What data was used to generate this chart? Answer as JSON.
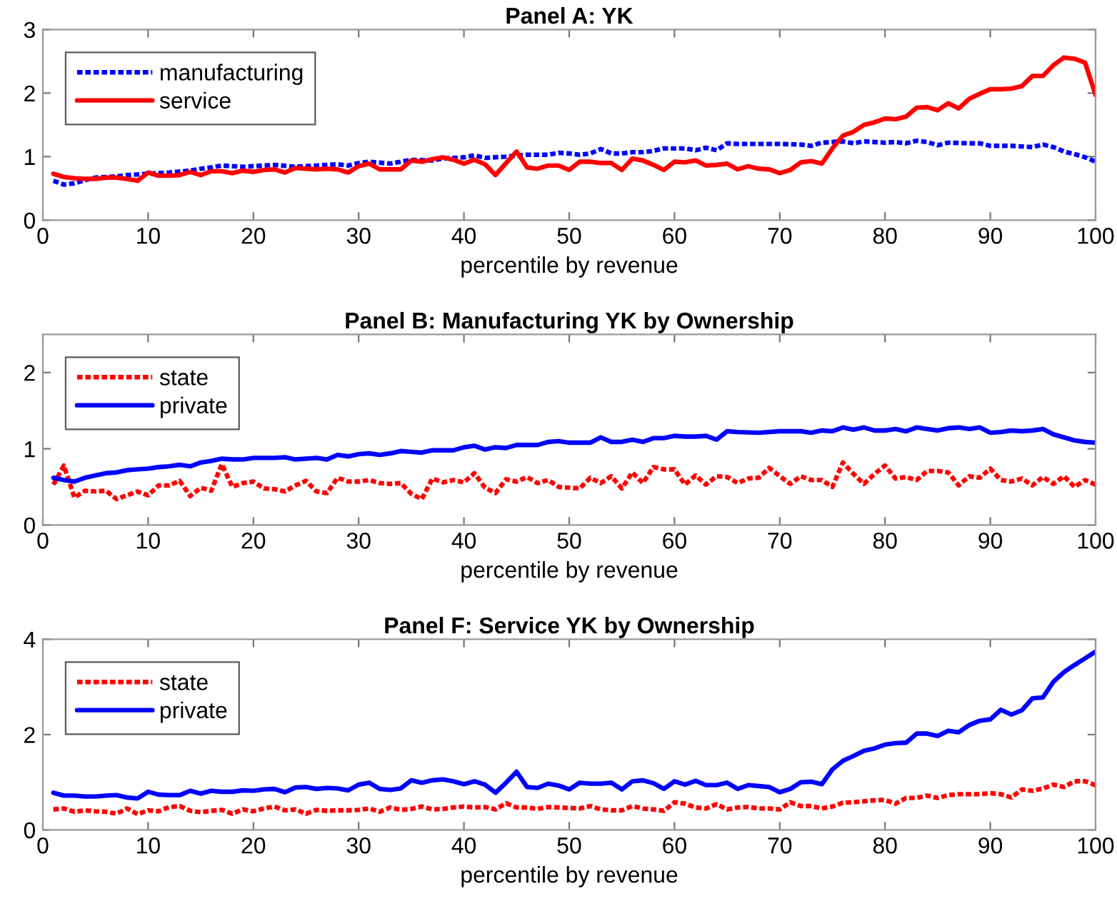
{
  "chart_data": [
    {
      "type": "line",
      "title": "Panel A: YK",
      "xlabel": "percentile by revenue",
      "xlim": [
        0,
        100
      ],
      "xticks": [
        0,
        10,
        20,
        30,
        40,
        50,
        60,
        70,
        80,
        90,
        100
      ],
      "ylim": [
        0,
        3
      ],
      "yticks": [
        0,
        1,
        2,
        3
      ],
      "legend": "top left",
      "x": [
        1,
        2,
        3,
        4,
        5,
        6,
        7,
        8,
        9,
        10,
        11,
        12,
        13,
        14,
        15,
        16,
        17,
        18,
        19,
        20,
        21,
        22,
        23,
        24,
        25,
        26,
        27,
        28,
        29,
        30,
        31,
        32,
        33,
        34,
        35,
        36,
        37,
        38,
        39,
        40,
        41,
        42,
        43,
        44,
        45,
        46,
        47,
        48,
        49,
        50,
        51,
        52,
        53,
        54,
        55,
        56,
        57,
        58,
        59,
        60,
        61,
        62,
        63,
        64,
        65,
        66,
        67,
        68,
        69,
        70,
        71,
        72,
        73,
        74,
        75,
        76,
        77,
        78,
        79,
        80,
        81,
        82,
        83,
        84,
        85,
        86,
        87,
        88,
        89,
        90,
        91,
        92,
        93,
        94,
        95,
        96,
        97,
        98,
        99,
        100
      ],
      "series": [
        {
          "name": "manufacturing",
          "color": "#0000ff",
          "line_style": "dashed",
          "x": [
            1,
            2,
            3,
            4,
            5,
            6,
            7,
            8,
            9,
            10,
            12,
            14,
            15,
            16,
            17,
            18,
            19,
            20,
            22,
            24,
            26,
            28,
            29,
            30,
            31,
            33,
            35,
            37,
            38,
            40,
            41,
            42,
            44,
            46,
            48,
            49,
            50,
            51,
            52,
            53,
            54,
            55,
            56,
            57,
            58,
            59,
            60,
            61,
            62,
            63,
            64,
            65,
            66,
            70,
            72,
            73,
            74,
            76,
            77,
            78,
            80,
            81,
            82,
            83,
            84,
            85,
            86,
            88,
            89,
            90,
            92,
            94,
            95,
            96,
            97,
            98,
            99,
            100
          ],
          "values": [
            0.62,
            0.56,
            0.58,
            0.63,
            0.67,
            0.68,
            0.69,
            0.71,
            0.72,
            0.73,
            0.75,
            0.78,
            0.81,
            0.83,
            0.86,
            0.85,
            0.84,
            0.85,
            0.87,
            0.84,
            0.86,
            0.88,
            0.86,
            0.9,
            0.92,
            0.89,
            0.95,
            0.94,
            0.97,
            0.99,
            1.02,
            0.98,
            1.0,
            1.03,
            1.03,
            1.06,
            1.05,
            1.03,
            1.05,
            1.12,
            1.05,
            1.05,
            1.07,
            1.07,
            1.09,
            1.13,
            1.13,
            1.13,
            1.1,
            1.14,
            1.1,
            1.21,
            1.2,
            1.2,
            1.19,
            1.17,
            1.22,
            1.24,
            1.21,
            1.24,
            1.22,
            1.23,
            1.21,
            1.25,
            1.23,
            1.18,
            1.22,
            1.21,
            1.21,
            1.17,
            1.17,
            1.15,
            1.19,
            1.15,
            1.08,
            1.04,
            0.99,
            0.92
          ]
        },
        {
          "name": "service",
          "color": "#ff0000",
          "line_style": "solid",
          "values": [
            0.73,
            0.68,
            0.66,
            0.65,
            0.65,
            0.67,
            0.67,
            0.65,
            0.62,
            0.75,
            0.7,
            0.7,
            0.71,
            0.76,
            0.71,
            0.77,
            0.77,
            0.74,
            0.78,
            0.76,
            0.79,
            0.8,
            0.75,
            0.82,
            0.81,
            0.8,
            0.81,
            0.8,
            0.75,
            0.85,
            0.89,
            0.8,
            0.8,
            0.8,
            0.94,
            0.92,
            0.96,
            0.99,
            0.95,
            0.89,
            0.95,
            0.88,
            0.71,
            0.9,
            1.08,
            0.83,
            0.81,
            0.86,
            0.86,
            0.79,
            0.92,
            0.92,
            0.9,
            0.9,
            0.79,
            0.97,
            0.94,
            0.87,
            0.79,
            0.92,
            0.91,
            0.94,
            0.86,
            0.87,
            0.89,
            0.8,
            0.85,
            0.81,
            0.8,
            0.74,
            0.79,
            0.91,
            0.93,
            0.89,
            1.13,
            1.33,
            1.39,
            1.5,
            1.54,
            1.6,
            1.59,
            1.63,
            1.77,
            1.78,
            1.73,
            1.84,
            1.76,
            1.91,
            1.99,
            2.06,
            2.06,
            2.07,
            2.11,
            2.27,
            2.27,
            2.44,
            2.56,
            2.54,
            2.48,
            1.97
          ]
        }
      ]
    },
    {
      "type": "line",
      "title": "Panel B: Manufacturing YK by Ownership",
      "xlabel": "percentile by revenue",
      "xlim": [
        0,
        100
      ],
      "xticks": [
        0,
        10,
        20,
        30,
        40,
        50,
        60,
        70,
        80,
        90,
        100
      ],
      "ylim": [
        0,
        2.5
      ],
      "yticks": [
        0,
        1,
        2
      ],
      "legend": "top left",
      "x": [
        1,
        2,
        3,
        4,
        5,
        6,
        7,
        8,
        9,
        10,
        11,
        12,
        13,
        14,
        15,
        16,
        17,
        18,
        19,
        20,
        21,
        22,
        23,
        24,
        25,
        26,
        27,
        28,
        29,
        30,
        31,
        32,
        33,
        34,
        35,
        36,
        37,
        38,
        39,
        40,
        41,
        42,
        43,
        44,
        45,
        46,
        47,
        48,
        49,
        50,
        51,
        52,
        53,
        54,
        55,
        56,
        57,
        58,
        59,
        60,
        61,
        62,
        63,
        64,
        65,
        66,
        67,
        68,
        69,
        70,
        71,
        72,
        73,
        74,
        75,
        76,
        77,
        78,
        79,
        80,
        81,
        82,
        83,
        84,
        85,
        86,
        87,
        88,
        89,
        90,
        91,
        92,
        93,
        94,
        95,
        96,
        97,
        98,
        99,
        100
      ],
      "series": [
        {
          "name": "state",
          "color": "#ff0000",
          "line_style": "dashed",
          "values": [
            0.53,
            0.78,
            0.36,
            0.45,
            0.44,
            0.45,
            0.34,
            0.39,
            0.44,
            0.39,
            0.52,
            0.52,
            0.58,
            0.38,
            0.49,
            0.45,
            0.8,
            0.5,
            0.55,
            0.57,
            0.48,
            0.47,
            0.44,
            0.52,
            0.58,
            0.44,
            0.42,
            0.62,
            0.57,
            0.57,
            0.59,
            0.55,
            0.54,
            0.55,
            0.41,
            0.34,
            0.61,
            0.56,
            0.59,
            0.56,
            0.68,
            0.49,
            0.42,
            0.6,
            0.57,
            0.63,
            0.55,
            0.59,
            0.5,
            0.49,
            0.48,
            0.62,
            0.55,
            0.64,
            0.48,
            0.69,
            0.55,
            0.76,
            0.73,
            0.73,
            0.53,
            0.65,
            0.53,
            0.64,
            0.63,
            0.55,
            0.61,
            0.62,
            0.75,
            0.64,
            0.54,
            0.64,
            0.59,
            0.59,
            0.5,
            0.82,
            0.67,
            0.54,
            0.67,
            0.78,
            0.61,
            0.63,
            0.59,
            0.71,
            0.71,
            0.69,
            0.52,
            0.64,
            0.62,
            0.74,
            0.59,
            0.57,
            0.61,
            0.52,
            0.63,
            0.54,
            0.64,
            0.5,
            0.59,
            0.53
          ]
        },
        {
          "name": "private",
          "color": "#0000ff",
          "line_style": "solid",
          "x": [
            1,
            2,
            3,
            4,
            5,
            6,
            7,
            8,
            9,
            10,
            11,
            12,
            13,
            14,
            15,
            16,
            17,
            18,
            19,
            20,
            22,
            23,
            24,
            26,
            27,
            28,
            29,
            30,
            31,
            32,
            33,
            34,
            35,
            36,
            37,
            38,
            39,
            40,
            41,
            42,
            43,
            44,
            45,
            46,
            47,
            48,
            49,
            50,
            51,
            52,
            53,
            54,
            55,
            56,
            57,
            58,
            59,
            60,
            61,
            62,
            63,
            64,
            65,
            66,
            68,
            70,
            72,
            73,
            74,
            75,
            76,
            77,
            78,
            79,
            80,
            81,
            82,
            83,
            84,
            85,
            86,
            87,
            88,
            89,
            90,
            91,
            92,
            93,
            94,
            95,
            96,
            97,
            98,
            99,
            100
          ],
          "values": [
            0.62,
            0.59,
            0.57,
            0.62,
            0.65,
            0.68,
            0.69,
            0.72,
            0.73,
            0.74,
            0.76,
            0.77,
            0.79,
            0.77,
            0.82,
            0.84,
            0.87,
            0.86,
            0.86,
            0.88,
            0.88,
            0.89,
            0.86,
            0.88,
            0.86,
            0.92,
            0.9,
            0.93,
            0.94,
            0.92,
            0.94,
            0.97,
            0.96,
            0.95,
            0.98,
            0.98,
            0.98,
            1.02,
            1.04,
            0.99,
            1.02,
            1.01,
            1.05,
            1.05,
            1.05,
            1.09,
            1.1,
            1.08,
            1.08,
            1.08,
            1.15,
            1.09,
            1.09,
            1.12,
            1.09,
            1.14,
            1.14,
            1.17,
            1.16,
            1.16,
            1.17,
            1.12,
            1.23,
            1.22,
            1.21,
            1.23,
            1.23,
            1.21,
            1.24,
            1.23,
            1.28,
            1.25,
            1.28,
            1.24,
            1.24,
            1.26,
            1.23,
            1.28,
            1.26,
            1.24,
            1.27,
            1.28,
            1.26,
            1.28,
            1.21,
            1.22,
            1.24,
            1.23,
            1.24,
            1.26,
            1.19,
            1.15,
            1.11,
            1.09,
            1.08
          ]
        }
      ]
    },
    {
      "type": "line",
      "title": "Panel F: Service YK by Ownership",
      "xlabel": "percentile by revenue",
      "xlim": [
        0,
        100
      ],
      "xticks": [
        0,
        10,
        20,
        30,
        40,
        50,
        60,
        70,
        80,
        90,
        100
      ],
      "ylim": [
        0,
        4
      ],
      "yticks": [
        0,
        2,
        4
      ],
      "legend": "top left",
      "x": [
        1,
        2,
        3,
        4,
        5,
        6,
        7,
        8,
        9,
        10,
        11,
        12,
        13,
        14,
        15,
        16,
        17,
        18,
        19,
        20,
        21,
        22,
        23,
        24,
        25,
        26,
        27,
        28,
        29,
        30,
        31,
        32,
        33,
        34,
        35,
        36,
        37,
        38,
        39,
        40,
        41,
        42,
        43,
        44,
        45,
        46,
        47,
        48,
        49,
        50,
        51,
        52,
        53,
        54,
        55,
        56,
        57,
        58,
        59,
        60,
        61,
        62,
        63,
        64,
        65,
        66,
        67,
        68,
        69,
        70,
        71,
        72,
        73,
        74,
        75,
        76,
        77,
        78,
        79,
        80,
        81,
        82,
        83,
        84,
        85,
        86,
        87,
        88,
        89,
        90,
        91,
        92,
        93,
        94,
        95,
        96,
        97,
        98,
        99,
        100
      ],
      "series": [
        {
          "name": "state",
          "color": "#ff0000",
          "line_style": "dashed",
          "values": [
            0.43,
            0.45,
            0.38,
            0.41,
            0.39,
            0.38,
            0.34,
            0.45,
            0.33,
            0.41,
            0.39,
            0.48,
            0.5,
            0.4,
            0.37,
            0.4,
            0.42,
            0.34,
            0.43,
            0.39,
            0.45,
            0.49,
            0.41,
            0.43,
            0.34,
            0.42,
            0.4,
            0.41,
            0.41,
            0.42,
            0.45,
            0.38,
            0.47,
            0.42,
            0.44,
            0.49,
            0.43,
            0.44,
            0.47,
            0.49,
            0.47,
            0.48,
            0.43,
            0.56,
            0.47,
            0.47,
            0.44,
            0.48,
            0.47,
            0.46,
            0.45,
            0.5,
            0.43,
            0.41,
            0.41,
            0.5,
            0.45,
            0.43,
            0.4,
            0.58,
            0.55,
            0.47,
            0.45,
            0.54,
            0.43,
            0.47,
            0.48,
            0.45,
            0.45,
            0.43,
            0.58,
            0.5,
            0.5,
            0.45,
            0.49,
            0.57,
            0.58,
            0.6,
            0.62,
            0.63,
            0.55,
            0.67,
            0.67,
            0.72,
            0.67,
            0.73,
            0.75,
            0.75,
            0.75,
            0.77,
            0.75,
            0.68,
            0.85,
            0.82,
            0.87,
            0.95,
            0.9,
            1.02,
            1.02,
            0.94
          ]
        },
        {
          "name": "private",
          "color": "#0000ff",
          "line_style": "solid",
          "values": [
            0.78,
            0.72,
            0.72,
            0.7,
            0.7,
            0.72,
            0.73,
            0.68,
            0.66,
            0.8,
            0.74,
            0.73,
            0.73,
            0.82,
            0.76,
            0.82,
            0.8,
            0.8,
            0.83,
            0.82,
            0.85,
            0.86,
            0.79,
            0.89,
            0.9,
            0.86,
            0.88,
            0.87,
            0.83,
            0.95,
            0.99,
            0.86,
            0.84,
            0.87,
            1.04,
            0.99,
            1.04,
            1.06,
            1.02,
            0.96,
            1.02,
            0.95,
            0.78,
            0.99,
            1.22,
            0.9,
            0.88,
            0.97,
            0.93,
            0.85,
            0.99,
            0.97,
            0.97,
            0.99,
            0.85,
            1.02,
            1.04,
            0.98,
            0.86,
            1.02,
            0.95,
            1.03,
            0.94,
            0.94,
            0.99,
            0.86,
            0.94,
            0.92,
            0.9,
            0.79,
            0.86,
            1.0,
            1.01,
            0.96,
            1.27,
            1.45,
            1.55,
            1.66,
            1.71,
            1.79,
            1.82,
            1.83,
            2.02,
            2.02,
            1.97,
            2.08,
            2.05,
            2.2,
            2.29,
            2.32,
            2.52,
            2.42,
            2.51,
            2.76,
            2.78,
            3.11,
            3.31,
            3.46,
            3.6,
            3.74
          ]
        }
      ]
    }
  ]
}
